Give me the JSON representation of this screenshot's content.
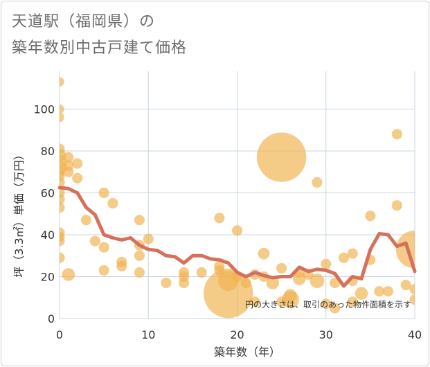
{
  "title_lines": [
    "天道駅（福岡県）の",
    "築年数別中古戸建て価格"
  ],
  "chart_data": {
    "type": "scatter",
    "xlabel": "築年数（年）",
    "ylabel": "坪（3.3㎡）単価（万円）",
    "xlim": [
      0,
      40
    ],
    "ylim": [
      0,
      118
    ],
    "x_ticks": [
      0,
      10,
      20,
      30,
      40
    ],
    "y_ticks": [
      0,
      20,
      40,
      60,
      80,
      100
    ],
    "grid": true,
    "note": "円の大きさは、取引のあった物件面積を示す",
    "colors": {
      "bubble": "#f0b34f",
      "line": "#d6705a",
      "grid": "#c8d4e2"
    },
    "bubbles": [
      {
        "x": 0,
        "y": 113,
        "s": 1.6
      },
      {
        "x": 0,
        "y": 100,
        "s": 1.6
      },
      {
        "x": 0,
        "y": 96,
        "s": 1.6
      },
      {
        "x": 0,
        "y": 81,
        "s": 1.8
      },
      {
        "x": 0,
        "y": 78,
        "s": 2.2
      },
      {
        "x": 0,
        "y": 75,
        "s": 2.4
      },
      {
        "x": 0,
        "y": 72,
        "s": 2.4
      },
      {
        "x": 0,
        "y": 70,
        "s": 1.8
      },
      {
        "x": 0,
        "y": 68,
        "s": 1.8
      },
      {
        "x": 0,
        "y": 65,
        "s": 1.8
      },
      {
        "x": 0,
        "y": 60,
        "s": 1.8
      },
      {
        "x": 0,
        "y": 57,
        "s": 1.8
      },
      {
        "x": 0,
        "y": 53,
        "s": 1.8
      },
      {
        "x": 0,
        "y": 41,
        "s": 1.8
      },
      {
        "x": 0,
        "y": 39,
        "s": 1.8
      },
      {
        "x": 0,
        "y": 37,
        "s": 1.8
      },
      {
        "x": 0,
        "y": 29,
        "s": 1.8
      },
      {
        "x": 1,
        "y": 77,
        "s": 1.8
      },
      {
        "x": 1,
        "y": 73,
        "s": 1.8
      },
      {
        "x": 1,
        "y": 70,
        "s": 1.8
      },
      {
        "x": 1,
        "y": 21,
        "s": 2.2
      },
      {
        "x": 2,
        "y": 74,
        "s": 1.8
      },
      {
        "x": 2,
        "y": 67,
        "s": 1.8
      },
      {
        "x": 3,
        "y": 47,
        "s": 1.8
      },
      {
        "x": 4,
        "y": 37,
        "s": 1.8
      },
      {
        "x": 5,
        "y": 60,
        "s": 1.8
      },
      {
        "x": 5,
        "y": 34,
        "s": 1.8
      },
      {
        "x": 5,
        "y": 23,
        "s": 1.8
      },
      {
        "x": 6,
        "y": 55,
        "s": 1.8
      },
      {
        "x": 7,
        "y": 27,
        "s": 1.8
      },
      {
        "x": 7,
        "y": 25,
        "s": 1.8
      },
      {
        "x": 9,
        "y": 47,
        "s": 1.8
      },
      {
        "x": 9,
        "y": 35,
        "s": 1.8
      },
      {
        "x": 9,
        "y": 30,
        "s": 1.8
      },
      {
        "x": 9,
        "y": 22,
        "s": 1.8
      },
      {
        "x": 10,
        "y": 38,
        "s": 1.8
      },
      {
        "x": 12,
        "y": 17,
        "s": 1.8
      },
      {
        "x": 14,
        "y": 22,
        "s": 1.8
      },
      {
        "x": 14,
        "y": 20,
        "s": 1.8
      },
      {
        "x": 14,
        "y": 17,
        "s": 1.8
      },
      {
        "x": 16,
        "y": 22,
        "s": 1.8
      },
      {
        "x": 18,
        "y": 48,
        "s": 1.8
      },
      {
        "x": 18,
        "y": 25,
        "s": 1.8
      },
      {
        "x": 18,
        "y": 23,
        "s": 1.8
      },
      {
        "x": 19,
        "y": 18,
        "s": 3.5
      },
      {
        "x": 19,
        "y": 12,
        "s": 8.5
      },
      {
        "x": 20,
        "y": 42,
        "s": 1.8
      },
      {
        "x": 20,
        "y": 20,
        "s": 1.8
      },
      {
        "x": 21,
        "y": 17,
        "s": 1.8
      },
      {
        "x": 22,
        "y": 21,
        "s": 1.8
      },
      {
        "x": 22,
        "y": 8,
        "s": 1.8
      },
      {
        "x": 23,
        "y": 31,
        "s": 2
      },
      {
        "x": 23,
        "y": 20,
        "s": 1.8
      },
      {
        "x": 24,
        "y": 17,
        "s": 2.2
      },
      {
        "x": 25,
        "y": 77,
        "s": 8.5
      },
      {
        "x": 25,
        "y": 24,
        "s": 1.8
      },
      {
        "x": 25,
        "y": 8,
        "s": 1.8
      },
      {
        "x": 26,
        "y": 11,
        "s": 2.2
      },
      {
        "x": 26,
        "y": 9,
        "s": 3
      },
      {
        "x": 27,
        "y": 22,
        "s": 1.8
      },
      {
        "x": 27,
        "y": 19,
        "s": 2.2
      },
      {
        "x": 28,
        "y": 21,
        "s": 1.8
      },
      {
        "x": 29,
        "y": 65,
        "s": 1.8
      },
      {
        "x": 29,
        "y": 18,
        "s": 2.5
      },
      {
        "x": 30,
        "y": 26,
        "s": 1.8
      },
      {
        "x": 30,
        "y": 7,
        "s": 1.8
      },
      {
        "x": 31,
        "y": 17,
        "s": 1.8
      },
      {
        "x": 31,
        "y": 5,
        "s": 1.8
      },
      {
        "x": 32,
        "y": 29,
        "s": 1.8
      },
      {
        "x": 33,
        "y": 31,
        "s": 1.8
      },
      {
        "x": 33,
        "y": 18,
        "s": 1.8
      },
      {
        "x": 33,
        "y": 8,
        "s": 1.8
      },
      {
        "x": 34,
        "y": 12,
        "s": 2.2
      },
      {
        "x": 35,
        "y": 49,
        "s": 1.8
      },
      {
        "x": 35,
        "y": 28,
        "s": 1.8
      },
      {
        "x": 36,
        "y": 13,
        "s": 1.8
      },
      {
        "x": 37,
        "y": 13,
        "s": 1.8
      },
      {
        "x": 38,
        "y": 88,
        "s": 1.8
      },
      {
        "x": 38,
        "y": 54,
        "s": 1.8
      },
      {
        "x": 39,
        "y": 16,
        "s": 1.8
      },
      {
        "x": 40,
        "y": 33,
        "s": 6.5
      },
      {
        "x": 40,
        "y": 14,
        "s": 1.8
      },
      {
        "x": 40,
        "y": 9,
        "s": 1.8
      }
    ],
    "trend": {
      "x": [
        0,
        1,
        2,
        3,
        4,
        5,
        6,
        7,
        8,
        9,
        10,
        11,
        12,
        13,
        14,
        15,
        16,
        17,
        18,
        19,
        20,
        21,
        22,
        23,
        24,
        25,
        26,
        27,
        28,
        29,
        30,
        31,
        32,
        33,
        34,
        35,
        36,
        37,
        38,
        39,
        40
      ],
      "y": [
        62.5,
        62,
        60,
        53,
        49.5,
        40,
        38.5,
        37.5,
        38.5,
        35,
        33,
        32.5,
        30,
        29.5,
        26.5,
        30,
        30,
        28.5,
        28,
        26.5,
        22,
        20,
        22,
        20.5,
        19.5,
        20,
        20,
        24.5,
        22.5,
        23.5,
        23,
        21.5,
        15.5,
        20,
        19,
        33,
        40.5,
        40,
        34.5,
        36,
        22.5
      ]
    }
  }
}
